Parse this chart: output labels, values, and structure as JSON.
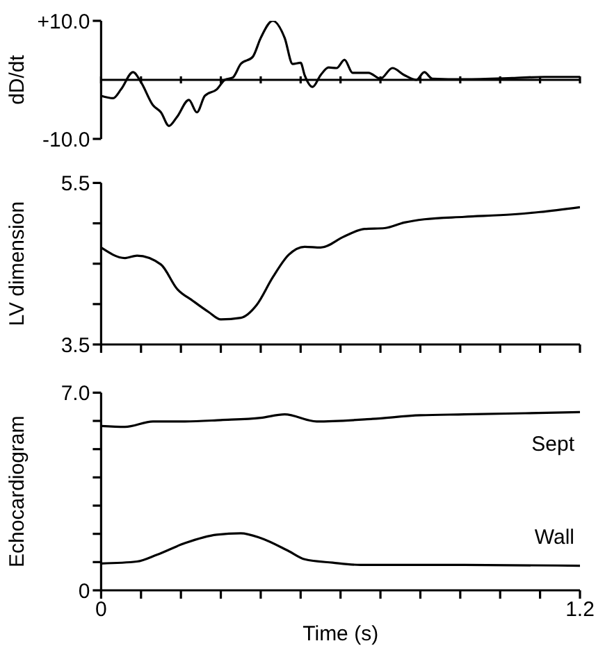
{
  "chart_data": [
    {
      "type": "line",
      "ylabel": "dD/dt",
      "xlim": [
        0,
        1.2
      ],
      "xticks": [
        0,
        0.1,
        0.2,
        0.3,
        0.4,
        0.5,
        0.6,
        0.7,
        0.8,
        0.9,
        1,
        1.1,
        1.2
      ],
      "ylim": [
        -10,
        10
      ],
      "yticks": [
        {
          "value": 10,
          "label": "+10.0"
        },
        {
          "value": -10,
          "label": "-10.0"
        }
      ],
      "tick_labels": "y",
      "grid": false,
      "legend": false,
      "marker": "none",
      "line_style": "solid",
      "ref_lines": [
        {
          "axis": "y",
          "value": 0,
          "color": "#000000"
        }
      ],
      "series": [
        {
          "color": "#000000",
          "x": [
            0,
            0.03,
            0.05,
            0.08,
            0.1,
            0.13,
            0.15,
            0.17,
            0.19,
            0.22,
            0.24,
            0.26,
            0.29,
            0.31,
            0.33,
            0.35,
            0.38,
            0.4,
            0.43,
            0.46,
            0.48,
            0.5,
            0.51,
            0.53,
            0.55,
            0.57,
            0.59,
            0.61,
            0.63,
            0.67,
            0.7,
            0.73,
            0.76,
            0.79,
            0.81,
            0.83,
            0.91,
            1.03,
            1.11,
            1.2
          ],
          "values": [
            -2.7,
            -3.1,
            -1.6,
            1.3,
            -0.4,
            -4.3,
            -5.5,
            -7.8,
            -6.3,
            -3.4,
            -5.5,
            -2.7,
            -1.6,
            0,
            0.4,
            2.7,
            3.9,
            7.1,
            10,
            7.1,
            2.7,
            2.9,
            0.8,
            -1.2,
            0.8,
            2.1,
            2,
            3.4,
            1.2,
            1.2,
            0.2,
            2,
            0.8,
            0,
            1.3,
            0.2,
            0.1,
            0.3,
            0.5,
            0.5
          ]
        }
      ]
    },
    {
      "type": "line",
      "ylabel": "LV dimension",
      "xlim": [
        0,
        1.2
      ],
      "xticks": [
        0,
        0.1,
        0.2,
        0.3,
        0.4,
        0.5,
        0.6,
        0.7,
        0.8,
        0.9,
        1,
        1.1,
        1.2
      ],
      "ylim": [
        3.5,
        5.5
      ],
      "yticks": [
        {
          "value": 3.5,
          "label": "3.5"
        },
        {
          "value": 4,
          "label": null
        },
        {
          "value": 4.5,
          "label": null
        },
        {
          "value": 5,
          "label": null
        },
        {
          "value": 5.5,
          "label": "5.5"
        }
      ],
      "tick_labels": "y",
      "grid": false,
      "legend": false,
      "marker": "none",
      "line_style": "solid",
      "series": [
        {
          "color": "#000000",
          "x": [
            0,
            0.06,
            0.09,
            0.15,
            0.19,
            0.23,
            0.27,
            0.3,
            0.35,
            0.39,
            0.43,
            0.47,
            0.51,
            0.55,
            0.61,
            0.66,
            0.71,
            0.76,
            0.81,
            0.91,
            1.03,
            1.1,
            1.2
          ],
          "values": [
            4.7,
            4.57,
            4.6,
            4.49,
            4.19,
            4.04,
            3.9,
            3.81,
            3.83,
            3.99,
            4.33,
            4.61,
            4.71,
            4.7,
            4.84,
            4.93,
            4.94,
            5.01,
            5.05,
            5.08,
            5.11,
            5.14,
            5.2
          ]
        }
      ]
    },
    {
      "type": "line",
      "xlabel": "Time (s)",
      "ylabel": "Echocardiogram",
      "xlim": [
        0,
        1.2
      ],
      "xticks": [
        0,
        {
          "value": 0.1,
          "label": null
        },
        {
          "value": 0.2,
          "label": null
        },
        {
          "value": 0.3,
          "label": null
        },
        {
          "value": 0.4,
          "label": null
        },
        {
          "value": 0.5,
          "label": null
        },
        {
          "value": 0.6,
          "label": null
        },
        {
          "value": 0.7,
          "label": null
        },
        {
          "value": 0.8,
          "label": null
        },
        {
          "value": 0.9,
          "label": null
        },
        {
          "value": 1,
          "label": null
        },
        {
          "value": 1.1,
          "label": null
        },
        {
          "value": 1.2,
          "label": "1.2"
        }
      ],
      "ylim": [
        0,
        7
      ],
      "yticks": [
        0,
        {
          "value": 1,
          "label": null
        },
        {
          "value": 2,
          "label": null
        },
        {
          "value": 3,
          "label": null
        },
        {
          "value": 4,
          "label": null
        },
        {
          "value": 5,
          "label": null
        },
        {
          "value": 6,
          "label": null
        },
        {
          "value": 7,
          "label": "7.0"
        }
      ],
      "grid": false,
      "legend": false,
      "marker": "none",
      "line_style": "solid",
      "series": [
        {
          "name": "Sept",
          "color": "#000000",
          "x": [
            0,
            0.06,
            0.13,
            0.21,
            0.3,
            0.4,
            0.46,
            0.54,
            0.68,
            0.8,
            0.91,
            1.2
          ],
          "values": [
            5.82,
            5.79,
            5.98,
            5.98,
            6.03,
            6.11,
            6.23,
            5.98,
            6.07,
            6.2,
            6.23,
            6.31
          ]
        },
        {
          "name": "Wall",
          "color": "#000000",
          "x": [
            0,
            0.09,
            0.14,
            0.21,
            0.29,
            0.35,
            0.4,
            0.47,
            0.51,
            0.58,
            0.65,
            0.91,
            1.2
          ],
          "values": [
            0.95,
            1.02,
            1.26,
            1.67,
            1.97,
            2.02,
            1.85,
            1.39,
            1.1,
            0.98,
            0.9,
            0.9,
            0.87
          ]
        }
      ]
    }
  ]
}
